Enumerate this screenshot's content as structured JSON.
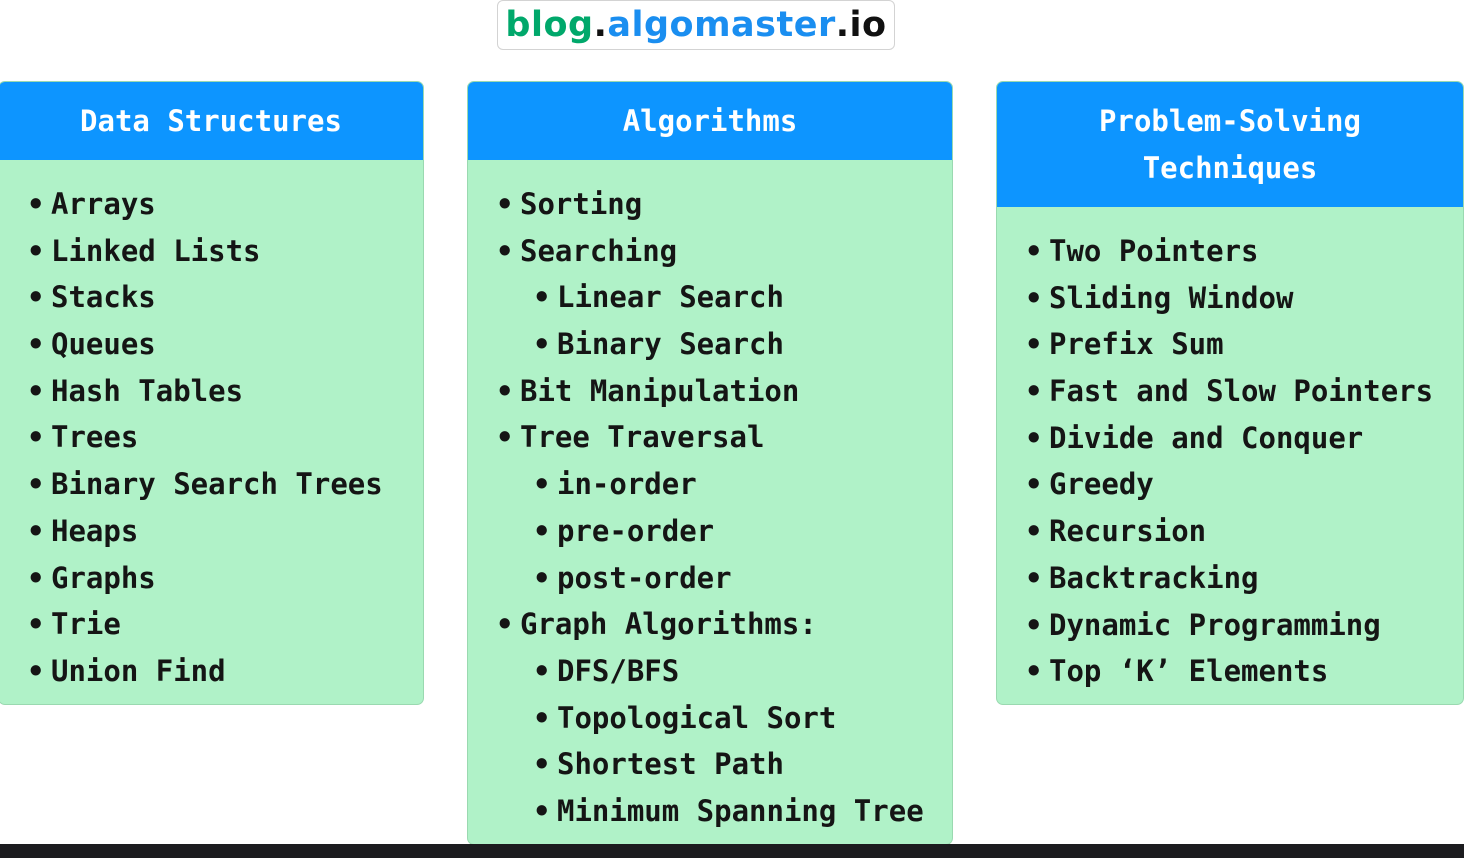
{
  "logo": {
    "part1": "blog",
    "dot1": ".",
    "part2": "algomaster",
    "part3": ".io"
  },
  "columns": [
    {
      "title": "Data Structures",
      "items": [
        {
          "label": "Arrays",
          "level": 0
        },
        {
          "label": "Linked Lists",
          "level": 0
        },
        {
          "label": "Stacks",
          "level": 0
        },
        {
          "label": "Queues",
          "level": 0
        },
        {
          "label": "Hash Tables",
          "level": 0
        },
        {
          "label": "Trees",
          "level": 0
        },
        {
          "label": "Binary Search Trees",
          "level": 0
        },
        {
          "label": "Heaps",
          "level": 0
        },
        {
          "label": "Graphs",
          "level": 0
        },
        {
          "label": "Trie",
          "level": 0
        },
        {
          "label": "Union Find",
          "level": 0
        }
      ]
    },
    {
      "title": "Algorithms",
      "items": [
        {
          "label": "Sorting",
          "level": 0
        },
        {
          "label": "Searching",
          "level": 0
        },
        {
          "label": "Linear Search",
          "level": 1
        },
        {
          "label": "Binary Search",
          "level": 1
        },
        {
          "label": "Bit Manipulation",
          "level": 0
        },
        {
          "label": "Tree Traversal",
          "level": 0
        },
        {
          "label": "in-order",
          "level": 1
        },
        {
          "label": "pre-order",
          "level": 1
        },
        {
          "label": "post-order",
          "level": 1
        },
        {
          "label": "Graph Algorithms:",
          "level": 0
        },
        {
          "label": "DFS/BFS",
          "level": 1
        },
        {
          "label": "Topological Sort",
          "level": 1
        },
        {
          "label": "Shortest Path",
          "level": 1
        },
        {
          "label": "Minimum Spanning Tree",
          "level": 1
        }
      ]
    },
    {
      "title": "Problem-Solving\nTechniques",
      "items": [
        {
          "label": "Two Pointers",
          "level": 0
        },
        {
          "label": "Sliding Window",
          "level": 0
        },
        {
          "label": "Prefix Sum",
          "level": 0
        },
        {
          "label": "Fast and Slow Pointers",
          "level": 0
        },
        {
          "label": "Divide and Conquer",
          "level": 0
        },
        {
          "label": "Greedy",
          "level": 0
        },
        {
          "label": "Recursion",
          "level": 0
        },
        {
          "label": "Backtracking",
          "level": 0
        },
        {
          "label": "Dynamic Programming",
          "level": 0
        },
        {
          "label": "Top ‘K’ Elements",
          "level": 0
        }
      ]
    }
  ],
  "colors": {
    "header_blue": "#0d95ff",
    "card_green": "#b0f2c8",
    "logo_green": "#00a86b",
    "logo_blue": "#1a8ef0"
  }
}
